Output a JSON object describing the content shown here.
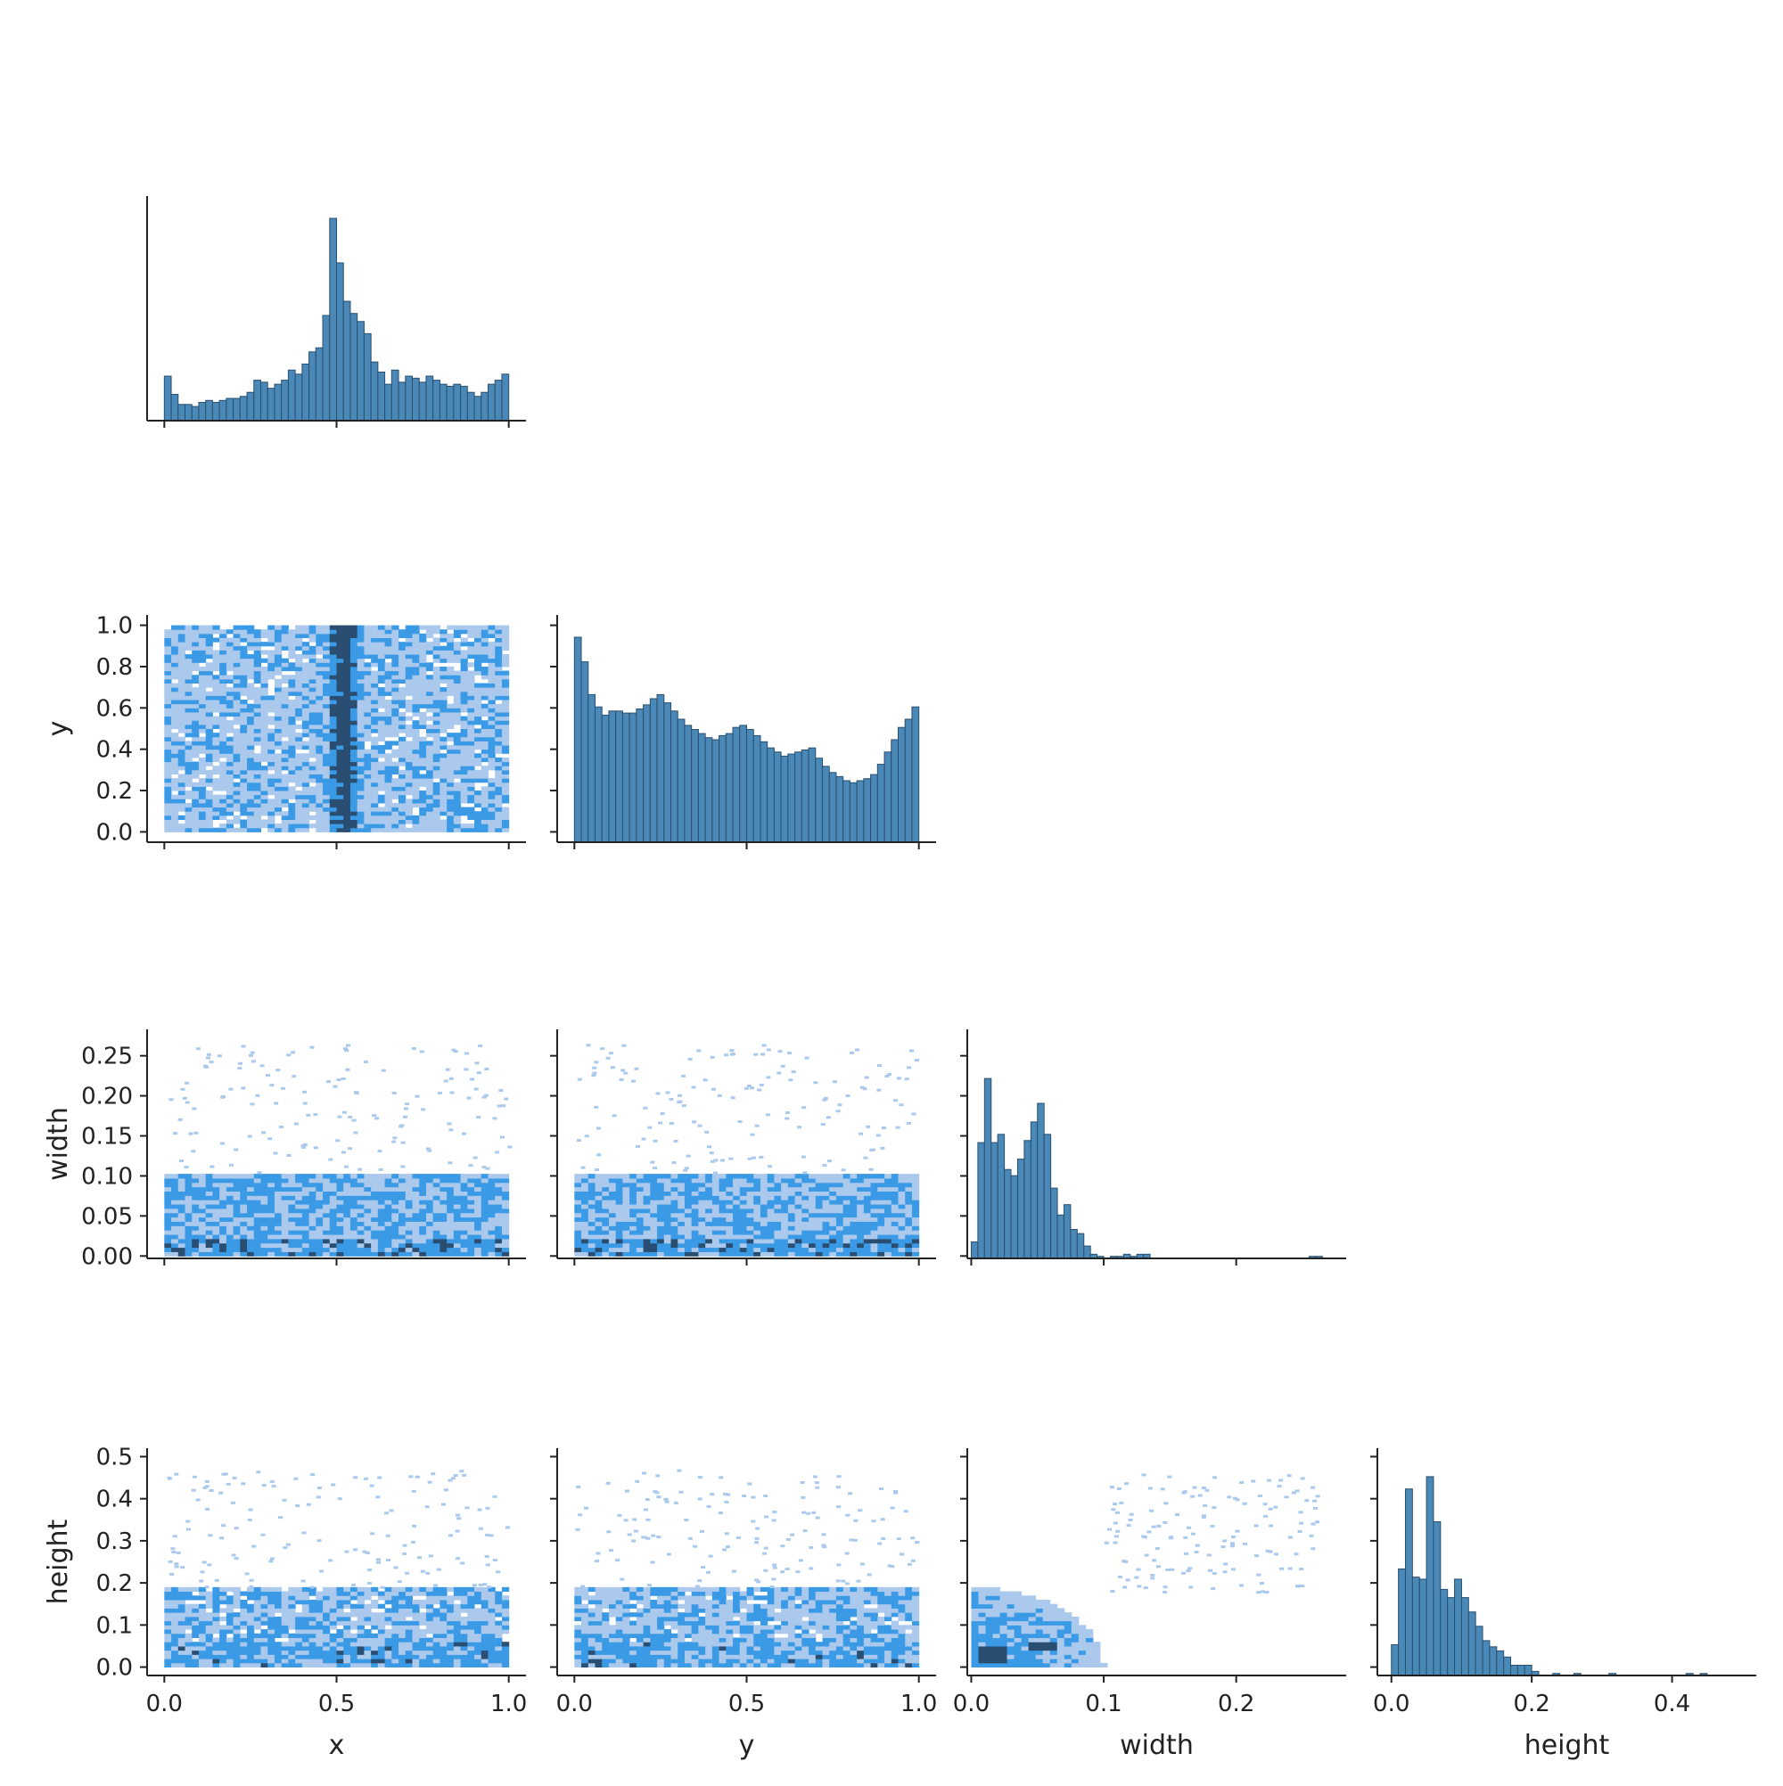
{
  "chart_data": {
    "type": "pairplot",
    "layout": "corner",
    "variables": [
      "x",
      "y",
      "width",
      "height"
    ],
    "colors": {
      "bar_fill": "#4a88b8",
      "bar_edge": "#2a4f6e",
      "hist2d_light": "#aac9ec",
      "hist2d_mid": "#3b9ae6",
      "hist2d_dark": "#2a4e72",
      "axis": "#222222"
    },
    "axis_labels": {
      "x": "x",
      "y": "y",
      "width": "width",
      "height": "height"
    },
    "x_ticks": {
      "x": [
        "0.0",
        "0.5",
        "1.0"
      ],
      "y": [
        "0.0",
        "0.5",
        "1.0"
      ],
      "width": [
        "0.0",
        "0.1",
        "0.2"
      ],
      "height": [
        "0.0",
        "0.2",
        "0.4"
      ]
    },
    "y_ticks": {
      "y": [
        "0.0",
        "0.2",
        "0.4",
        "0.6",
        "0.8",
        "1.0"
      ],
      "width": [
        "0.00",
        "0.05",
        "0.10",
        "0.15",
        "0.20",
        "0.25"
      ],
      "height": [
        "0.0",
        "0.1",
        "0.2",
        "0.3",
        "0.4",
        "0.5"
      ]
    },
    "ranges": {
      "x": [
        -0.05,
        1.05
      ],
      "y": [
        -0.05,
        1.05
      ],
      "width": [
        -0.003,
        0.283
      ],
      "height": [
        -0.02,
        0.52
      ]
    },
    "histograms": {
      "x": {
        "range": [
          0,
          1
        ],
        "bins": 50,
        "counts": [
          0.22,
          0.13,
          0.08,
          0.08,
          0.07,
          0.09,
          0.1,
          0.09,
          0.1,
          0.11,
          0.11,
          0.12,
          0.14,
          0.2,
          0.19,
          0.16,
          0.18,
          0.2,
          0.25,
          0.23,
          0.28,
          0.34,
          0.36,
          0.52,
          1.0,
          0.78,
          0.59,
          0.53,
          0.49,
          0.43,
          0.29,
          0.24,
          0.18,
          0.25,
          0.19,
          0.22,
          0.21,
          0.19,
          0.22,
          0.2,
          0.18,
          0.17,
          0.18,
          0.17,
          0.14,
          0.12,
          0.14,
          0.18,
          0.2,
          0.23
        ]
      },
      "y": {
        "range": [
          0,
          1
        ],
        "bins": 50,
        "counts": [
          1.0,
          0.88,
          0.72,
          0.66,
          0.62,
          0.64,
          0.64,
          0.63,
          0.63,
          0.65,
          0.67,
          0.7,
          0.72,
          0.68,
          0.64,
          0.6,
          0.57,
          0.55,
          0.53,
          0.51,
          0.5,
          0.52,
          0.53,
          0.56,
          0.57,
          0.55,
          0.52,
          0.49,
          0.46,
          0.44,
          0.42,
          0.43,
          0.44,
          0.45,
          0.46,
          0.41,
          0.37,
          0.34,
          0.32,
          0.3,
          0.29,
          0.3,
          0.31,
          0.33,
          0.38,
          0.44,
          0.5,
          0.56,
          0.6,
          0.66
        ]
      },
      "width": {
        "range": [
          0,
          0.27
        ],
        "bins": 54,
        "counts": [
          0.08,
          0.56,
          0.87,
          0.56,
          0.6,
          0.43,
          0.4,
          0.48,
          0.57,
          0.66,
          0.75,
          0.6,
          0.34,
          0.21,
          0.26,
          0.14,
          0.12,
          0.06,
          0.02,
          0.01,
          0,
          0.01,
          0.01,
          0.02,
          0.01,
          0.02,
          0.02,
          0,
          0,
          0,
          0,
          0,
          0,
          0,
          0,
          0,
          0,
          0,
          0,
          0,
          0,
          0,
          0,
          0,
          0,
          0,
          0,
          0,
          0,
          0,
          0,
          0.01,
          0.01,
          0
        ]
      },
      "height": {
        "range": [
          0,
          0.5
        ],
        "bins": 50,
        "counts": [
          0.15,
          0.52,
          0.91,
          0.48,
          0.47,
          0.97,
          0.75,
          0.42,
          0.38,
          0.47,
          0.38,
          0.31,
          0.24,
          0.17,
          0.14,
          0.12,
          0.09,
          0.05,
          0.05,
          0.05,
          0.02,
          0,
          0,
          0.01,
          0,
          0,
          0.01,
          0,
          0,
          0,
          0,
          0.01,
          0,
          0,
          0,
          0,
          0,
          0,
          0,
          0,
          0,
          0,
          0.01,
          0,
          0.01,
          0,
          0,
          0,
          0,
          0
        ]
      }
    },
    "hist2d_bins": 50
  }
}
